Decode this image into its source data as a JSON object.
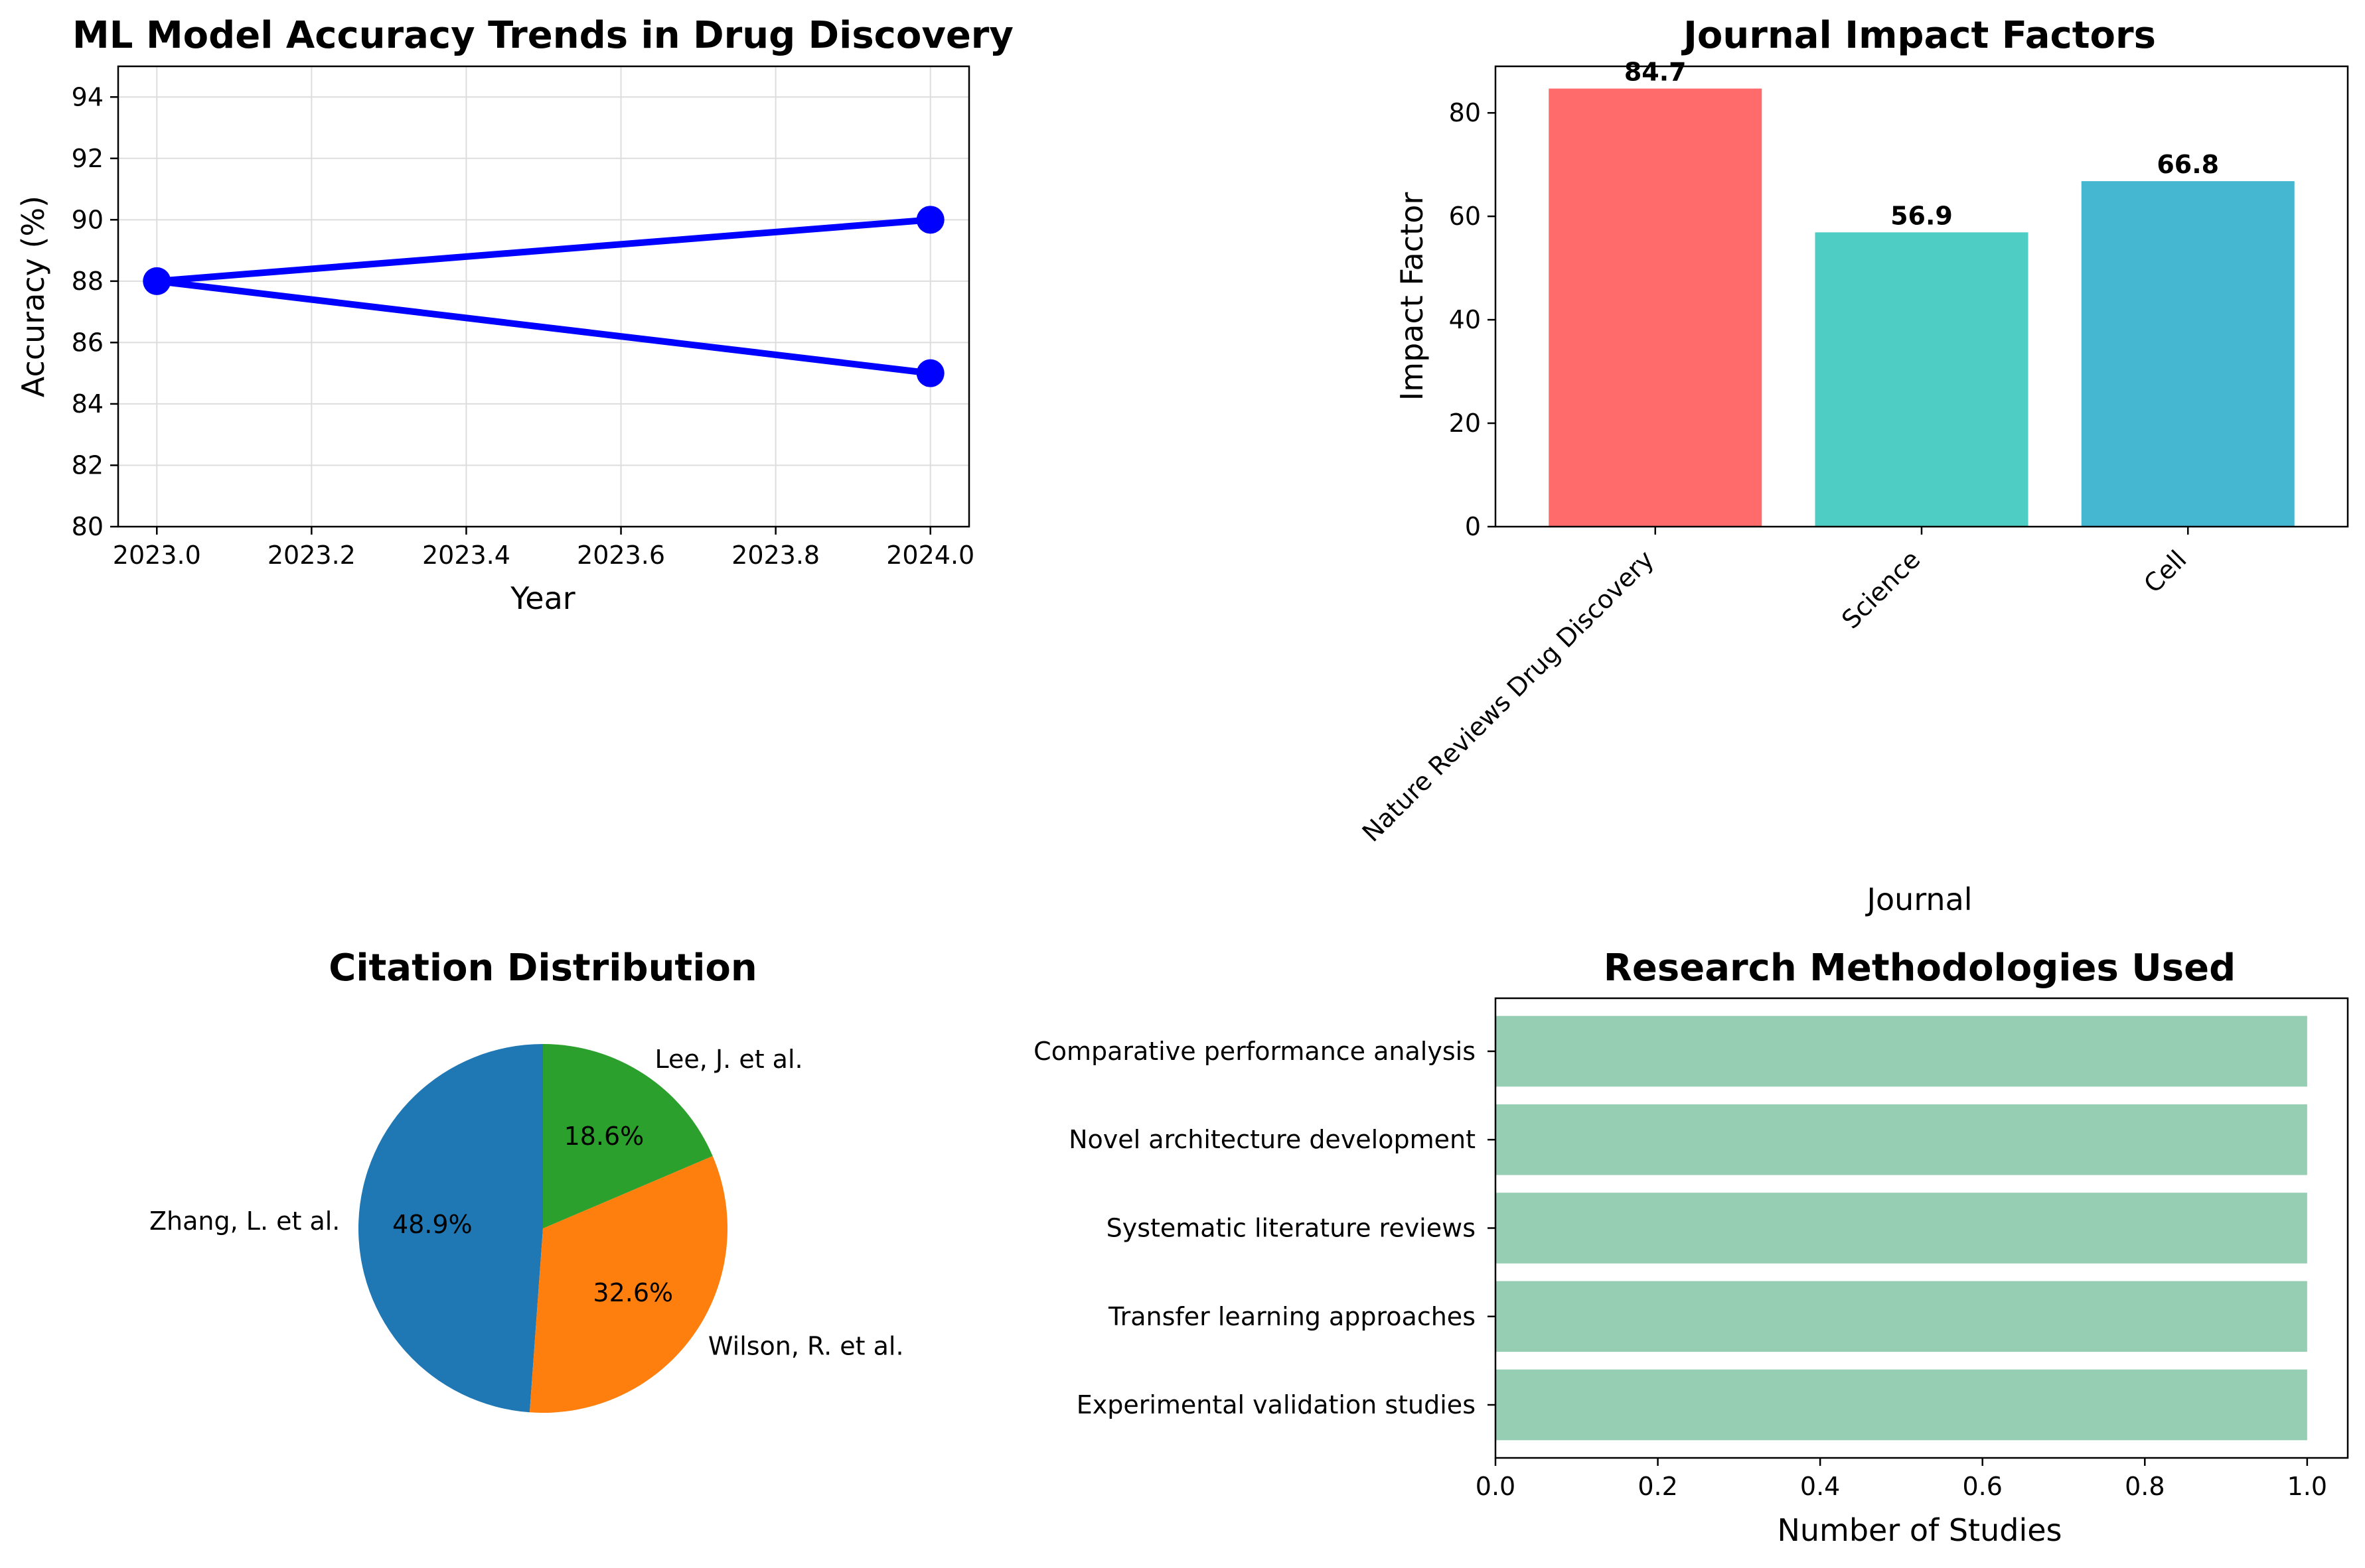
{
  "chart_data": [
    {
      "id": "accuracy",
      "type": "line",
      "title": "ML Model Accuracy Trends in Drug Discovery",
      "xlabel": "Year",
      "ylabel": "Accuracy (%)",
      "xlim": [
        2022.95,
        2024.05
      ],
      "ylim": [
        80,
        95
      ],
      "xticks": [
        "2023.0",
        "2023.2",
        "2023.4",
        "2023.6",
        "2023.8",
        "2024.0"
      ],
      "xtick_values": [
        2023.0,
        2023.2,
        2023.4,
        2023.6,
        2023.8,
        2024.0
      ],
      "yticks": [
        "80",
        "82",
        "84",
        "86",
        "88",
        "90",
        "92",
        "94"
      ],
      "ytick_values": [
        80,
        82,
        84,
        86,
        88,
        90,
        92,
        94
      ],
      "grid": true,
      "color": "#0000ff",
      "x": [
        2024,
        2023,
        2024
      ],
      "y": [
        90,
        88,
        85
      ]
    },
    {
      "id": "impact",
      "type": "bar",
      "title": "Journal Impact Factors",
      "xlabel": "Journal",
      "ylabel": "Impact Factor",
      "ylim": [
        0,
        89
      ],
      "yticks": [
        "0",
        "20",
        "40",
        "60",
        "80"
      ],
      "ytick_values": [
        0,
        20,
        40,
        60,
        80
      ],
      "categories": [
        "Nature Reviews Drug Discovery",
        "Science",
        "Cell"
      ],
      "values": [
        84.7,
        56.9,
        66.8
      ],
      "value_labels": [
        "84.7",
        "56.9",
        "66.8"
      ],
      "colors": [
        "#ff6b6b",
        "#4ecdc4",
        "#45b7d1"
      ]
    },
    {
      "id": "citations",
      "type": "pie",
      "title": "Citation Distribution",
      "labels": [
        "Zhang, L. et al.",
        "Wilson, R. et al.",
        "Lee, J. et al."
      ],
      "values": [
        48.9,
        32.6,
        18.6
      ],
      "pct_labels": [
        "48.9%",
        "32.6%",
        "18.6%"
      ],
      "colors": [
        "#1f77b4",
        "#ff7f0e",
        "#2ca02c"
      ],
      "start_angle": 90
    },
    {
      "id": "methods",
      "type": "bar",
      "orientation": "horizontal",
      "title": "Research Methodologies Used",
      "xlabel": "Number of Studies",
      "xlim": [
        0,
        1.05
      ],
      "xticks": [
        "0.0",
        "0.2",
        "0.4",
        "0.6",
        "0.8",
        "1.0"
      ],
      "xtick_values": [
        0,
        0.2,
        0.4,
        0.6,
        0.8,
        1.0
      ],
      "categories": [
        "Comparative performance analysis",
        "Novel architecture development",
        "Systematic literature reviews",
        "Transfer learning approaches",
        "Experimental validation studies"
      ],
      "values": [
        1,
        1,
        1,
        1,
        1
      ],
      "color": "#96ceb4"
    }
  ]
}
